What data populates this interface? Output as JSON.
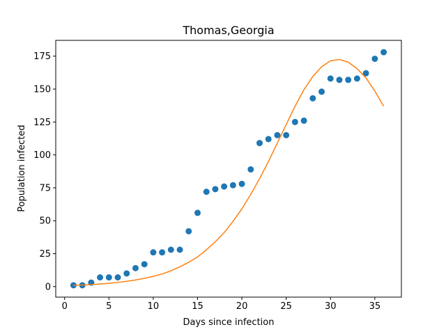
{
  "chart_data": {
    "type": "scatter",
    "title": "Thomas,Georgia",
    "xlabel": "Days since infection",
    "ylabel": "Population infected",
    "xlim": [
      -1,
      38
    ],
    "ylim": [
      -8,
      187
    ],
    "xticks": [
      0,
      5,
      10,
      15,
      20,
      25,
      30,
      35
    ],
    "yticks": [
      0,
      25,
      50,
      75,
      100,
      125,
      150,
      175
    ],
    "grid": false,
    "series": [
      {
        "kind": "scatter",
        "color": "#1f77b4",
        "x": [
          1,
          2,
          3,
          4,
          5,
          6,
          7,
          8,
          9,
          10,
          11,
          12,
          13,
          14,
          15,
          16,
          17,
          18,
          19,
          20,
          21,
          22,
          23,
          24,
          25,
          26,
          27,
          28,
          29,
          30,
          31,
          32,
          33,
          34,
          35,
          36
        ],
        "y": [
          1,
          1,
          3,
          7,
          7,
          7,
          10,
          14,
          17,
          26,
          26,
          28,
          28,
          42,
          56,
          72,
          74,
          76,
          77,
          78,
          89,
          109,
          112,
          115,
          115,
          125,
          126,
          143,
          148,
          158,
          157,
          157,
          158,
          162,
          173,
          178
        ]
      },
      {
        "kind": "line",
        "color": "#ff7f0e",
        "x": [
          1,
          2,
          3,
          4,
          5,
          6,
          7,
          8,
          9,
          10,
          11,
          12,
          13,
          14,
          15,
          16,
          17,
          18,
          19,
          20,
          21,
          22,
          23,
          24,
          25,
          26,
          27,
          28,
          29,
          30,
          31,
          32,
          33,
          34,
          35,
          36
        ],
        "y": [
          1,
          1.2,
          1.5,
          2,
          2.5,
          3.2,
          4,
          5,
          6.3,
          7.8,
          9.6,
          12,
          15,
          18.5,
          22.5,
          28,
          34,
          41,
          49.5,
          59,
          70,
          82,
          95,
          109,
          123,
          137,
          149.5,
          159.5,
          167,
          171.5,
          172.5,
          170.5,
          165.5,
          158.5,
          148.5,
          137
        ]
      }
    ]
  }
}
